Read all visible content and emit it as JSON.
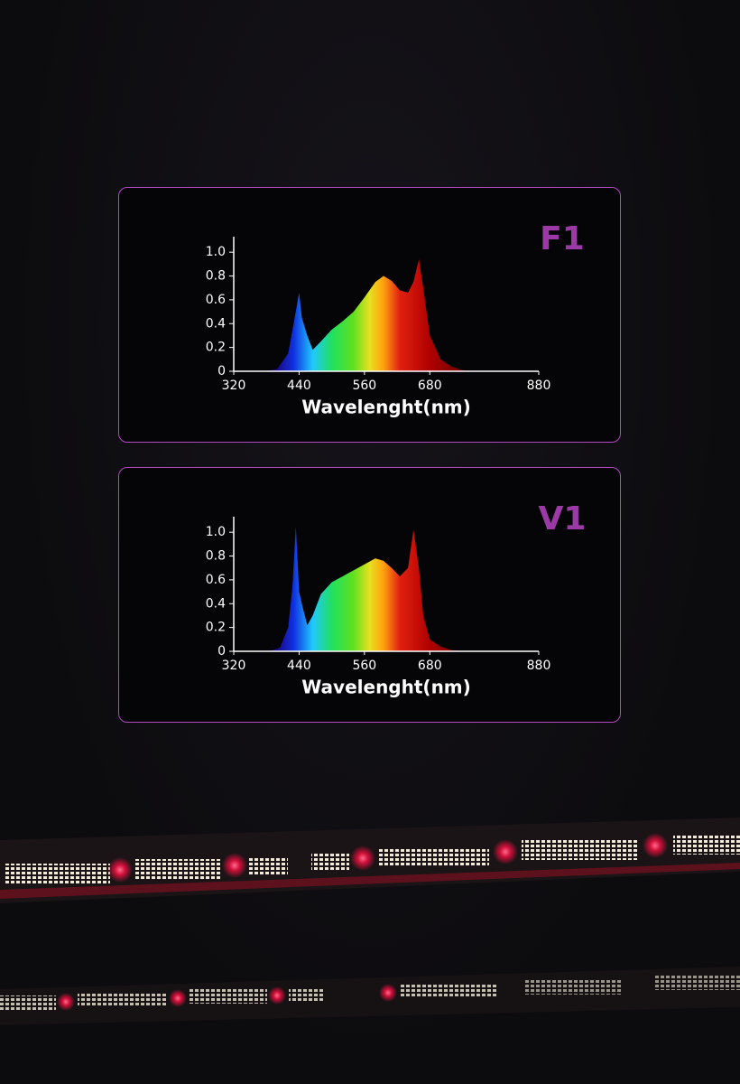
{
  "chart_data": [
    {
      "type": "area",
      "label": "F1",
      "x_label": "Wavelenght(nm)",
      "x": [
        380,
        400,
        420,
        430,
        440,
        445,
        455,
        465,
        480,
        500,
        520,
        540,
        560,
        580,
        595,
        610,
        625,
        640,
        650,
        660,
        668,
        680,
        700,
        720,
        740,
        760
      ],
      "values": [
        0,
        0.02,
        0.15,
        0.4,
        0.66,
        0.45,
        0.3,
        0.18,
        0.25,
        0.35,
        0.42,
        0.5,
        0.62,
        0.75,
        0.8,
        0.76,
        0.68,
        0.66,
        0.75,
        0.94,
        0.7,
        0.3,
        0.1,
        0.04,
        0.01,
        0
      ],
      "xlim": [
        320,
        880
      ],
      "xticks": [
        320,
        440,
        560,
        680,
        880
      ],
      "ylim": [
        0,
        1.1
      ],
      "yticks": [
        0,
        0.2,
        0.4,
        0.6,
        0.8,
        {
          "value": 1,
          "label": "1.0"
        }
      ]
    },
    {
      "type": "area",
      "label": "V1",
      "x_label": "Wavelenght(nm)",
      "x": [
        385,
        405,
        420,
        428,
        434,
        440,
        446,
        455,
        465,
        480,
        500,
        520,
        540,
        560,
        580,
        595,
        610,
        625,
        640,
        650,
        660,
        668,
        680,
        700,
        720,
        745
      ],
      "values": [
        0,
        0.03,
        0.2,
        0.55,
        1.05,
        0.5,
        0.38,
        0.22,
        0.3,
        0.48,
        0.58,
        0.63,
        0.68,
        0.73,
        0.78,
        0.76,
        0.7,
        0.63,
        0.7,
        1.02,
        0.7,
        0.3,
        0.1,
        0.04,
        0.01,
        0
      ],
      "xlim": [
        320,
        880
      ],
      "xticks": [
        320,
        440,
        560,
        680,
        880
      ],
      "ylim": [
        0,
        1.1
      ],
      "yticks": [
        0,
        0.2,
        0.4,
        0.6,
        0.8,
        {
          "value": 1,
          "label": "1.0"
        }
      ]
    }
  ]
}
